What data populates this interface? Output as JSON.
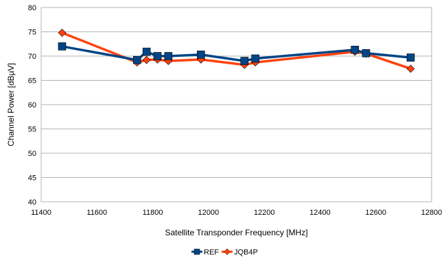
{
  "chart_data": {
    "type": "line",
    "title": "",
    "xlabel": "Satellite Transponder Frequency [MHz]",
    "ylabel": "Channel Power [dBµV]",
    "xlim": [
      11400,
      12800
    ],
    "ylim": [
      40,
      80
    ],
    "xticks": [
      11400,
      11600,
      11800,
      12000,
      12200,
      12400,
      12600,
      12800
    ],
    "yticks": [
      40,
      45,
      50,
      55,
      60,
      65,
      70,
      75,
      80
    ],
    "grid": true,
    "legend_position": "bottom",
    "series": [
      {
        "name": "REF",
        "color": "#004586",
        "marker": "square",
        "x": [
          11475,
          11744,
          11778,
          11817,
          11856,
          11973,
          12129,
          12168,
          12525,
          12565,
          12725
        ],
        "y": [
          72.0,
          69.2,
          70.9,
          70.0,
          70.0,
          70.3,
          69.0,
          69.5,
          71.3,
          70.6,
          69.7
        ]
      },
      {
        "name": "JQB4P",
        "color": "#ff420e",
        "marker": "diamond",
        "x": [
          11475,
          11744,
          11778,
          11817,
          11856,
          11973,
          12129,
          12168,
          12525,
          12565,
          12725
        ],
        "y": [
          74.8,
          68.7,
          69.2,
          69.3,
          69.0,
          69.3,
          68.2,
          68.7,
          70.9,
          70.5,
          67.4
        ]
      }
    ]
  }
}
